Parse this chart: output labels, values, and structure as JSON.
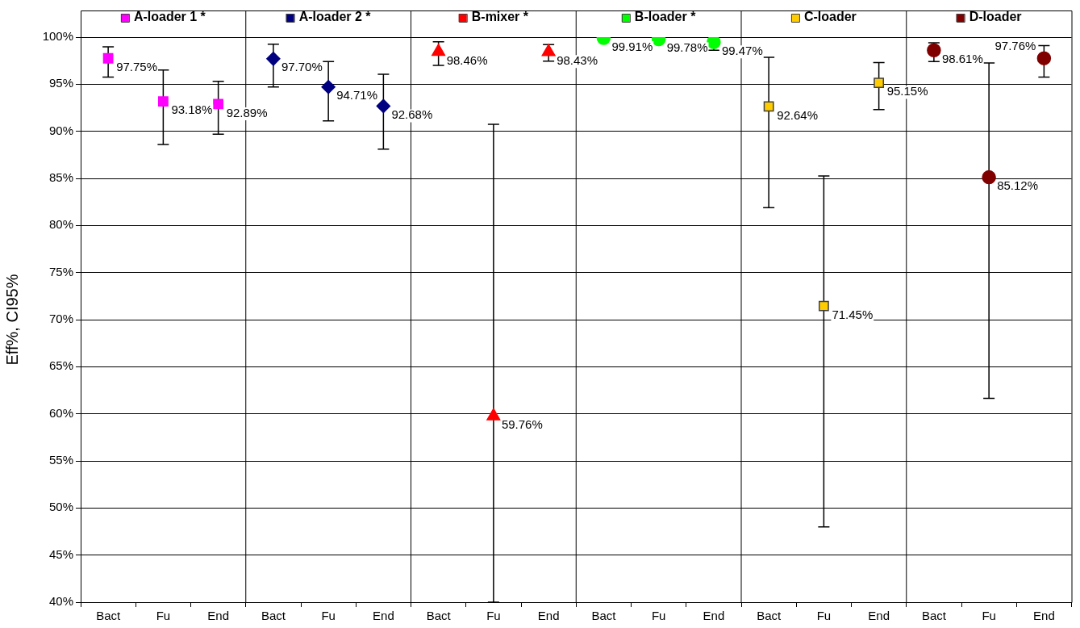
{
  "chart_data": {
    "type": "scatter",
    "ylabel": "Eff%, CI95%",
    "categories": [
      "Bact",
      "Fu",
      "End",
      "Bact",
      "Fu",
      "End",
      "Bact",
      "Fu",
      "End",
      "Bact",
      "Fu",
      "End",
      "Bact",
      "Fu",
      "End",
      "Bact",
      "Fu",
      "End"
    ],
    "ylim": [
      40,
      100
    ],
    "yticks": [
      {
        "value": 40,
        "label": "40%"
      },
      {
        "value": 45,
        "label": "45%"
      },
      {
        "value": 50,
        "label": "50%"
      },
      {
        "value": 55,
        "label": "55%"
      },
      {
        "value": 60,
        "label": "60%"
      },
      {
        "value": 65,
        "label": "65%"
      },
      {
        "value": 70,
        "label": "70%"
      },
      {
        "value": 75,
        "label": "75%"
      },
      {
        "value": 80,
        "label": "80%"
      },
      {
        "value": 85,
        "label": "85%"
      },
      {
        "value": 90,
        "label": "90%"
      },
      {
        "value": 95,
        "label": "95%"
      },
      {
        "value": 100,
        "label": "100%"
      }
    ],
    "grid": "y",
    "legend": "top",
    "series": [
      {
        "name": "A-loader 1 *",
        "color": "#ff00ff",
        "marker": "square",
        "values": [
          97.75,
          93.18,
          92.89,
          null,
          null,
          null,
          null,
          null,
          null,
          null,
          null,
          null,
          null,
          null,
          null,
          null,
          null,
          null
        ],
        "errors": [
          [
            95.75,
            98.97
          ],
          [
            88.6,
            96.5
          ],
          [
            89.7,
            95.3
          ],
          null,
          null,
          null,
          null,
          null,
          null,
          null,
          null,
          null,
          null,
          null,
          null,
          null,
          null,
          null
        ],
        "value_labels": [
          "97.75%",
          "93.18%",
          "92.89%",
          null,
          null,
          null,
          null,
          null,
          null,
          null,
          null,
          null,
          null,
          null,
          null,
          null,
          null,
          null
        ]
      },
      {
        "name": "A-loader 2 *",
        "color": "#000080",
        "marker": "diamond",
        "values": [
          null,
          null,
          null,
          97.7,
          94.71,
          92.68,
          null,
          null,
          null,
          null,
          null,
          null,
          null,
          null,
          null,
          null,
          null,
          null
        ],
        "errors": [
          null,
          null,
          null,
          [
            94.7,
            99.25
          ],
          [
            91.1,
            97.4
          ],
          [
            88.1,
            96.05
          ],
          null,
          null,
          null,
          null,
          null,
          null,
          null,
          null,
          null,
          null,
          null,
          null
        ],
        "value_labels": [
          null,
          null,
          null,
          "97.70%",
          "94.71%",
          "92.68%",
          null,
          null,
          null,
          null,
          null,
          null,
          null,
          null,
          null,
          null,
          null,
          null
        ]
      },
      {
        "name": "B-mixer *",
        "color": "#ff0000",
        "marker": "triangle",
        "values": [
          null,
          null,
          null,
          null,
          null,
          null,
          98.46,
          59.76,
          98.43,
          null,
          null,
          null,
          null,
          null,
          null,
          null,
          null,
          null
        ],
        "errors": [
          null,
          null,
          null,
          null,
          null,
          null,
          [
            97.0,
            99.5
          ],
          [
            40,
            90.75
          ],
          [
            97.45,
            99.2
          ],
          null,
          null,
          null,
          null,
          null,
          null,
          null,
          null,
          null
        ],
        "value_labels": [
          null,
          null,
          null,
          null,
          null,
          null,
          "98.46%",
          "59.76%",
          "98.43%",
          null,
          null,
          null,
          null,
          null,
          null,
          null,
          null,
          null
        ]
      },
      {
        "name": "B-loader *",
        "color": "#00ff00",
        "marker": "circle",
        "values": [
          null,
          null,
          null,
          null,
          null,
          null,
          null,
          null,
          null,
          99.91,
          99.78,
          99.47,
          null,
          null,
          null,
          null,
          null,
          null
        ],
        "errors": [
          null,
          null,
          null,
          null,
          null,
          null,
          null,
          null,
          null,
          null,
          null,
          [
            98.6,
            99.9
          ],
          null,
          null,
          null,
          null,
          null,
          null
        ],
        "value_labels": [
          null,
          null,
          null,
          null,
          null,
          null,
          null,
          null,
          null,
          "99.91%",
          "99.78%",
          "99.47%",
          null,
          null,
          null,
          null,
          null,
          null
        ]
      },
      {
        "name": "C-loader",
        "color": "#ffcc00",
        "marker": "square",
        "values": [
          null,
          null,
          null,
          null,
          null,
          null,
          null,
          null,
          null,
          null,
          null,
          null,
          92.64,
          71.45,
          95.15,
          null,
          null,
          null
        ],
        "errors": [
          null,
          null,
          null,
          null,
          null,
          null,
          null,
          null,
          null,
          null,
          null,
          null,
          [
            81.9,
            97.86
          ],
          [
            48.0,
            85.25
          ],
          [
            92.3,
            97.3
          ],
          null,
          null,
          null
        ],
        "value_labels": [
          null,
          null,
          null,
          null,
          null,
          null,
          null,
          null,
          null,
          null,
          null,
          null,
          "92.64%",
          "71.45%",
          "95.15%",
          null,
          null,
          null
        ]
      },
      {
        "name": "D-loader",
        "color": "#800000",
        "marker": "circle",
        "values": [
          null,
          null,
          null,
          null,
          null,
          null,
          null,
          null,
          null,
          null,
          null,
          null,
          null,
          null,
          null,
          98.61,
          85.12,
          97.76
        ],
        "errors": [
          null,
          null,
          null,
          null,
          null,
          null,
          null,
          null,
          null,
          null,
          null,
          null,
          null,
          null,
          null,
          [
            97.4,
            99.4
          ],
          [
            61.65,
            97.25
          ],
          [
            95.75,
            99.1
          ]
        ],
        "value_labels": [
          null,
          null,
          null,
          null,
          null,
          null,
          null,
          null,
          null,
          null,
          null,
          null,
          null,
          null,
          null,
          "98.61%",
          "85.12%",
          "97.76%"
        ]
      }
    ]
  }
}
